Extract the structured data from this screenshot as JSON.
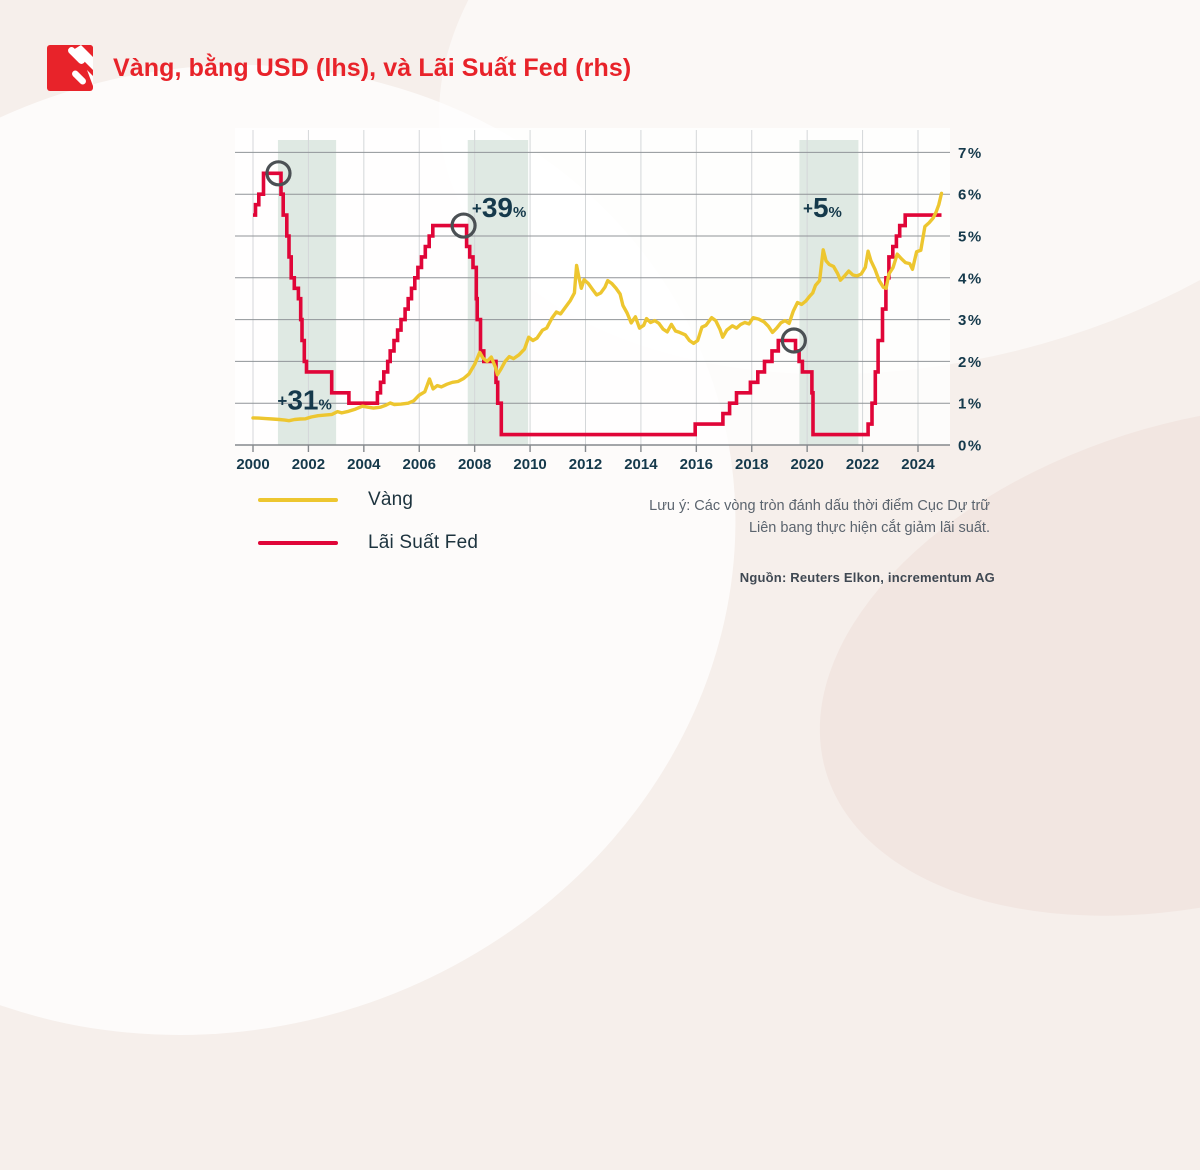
{
  "header": {
    "title": "Vàng, bằng USD (lhs), và Lãi Suất Fed (rhs)"
  },
  "colors": {
    "brand_red": "#e8232a",
    "gold_line": "#edc62f",
    "fed_line": "#e00538",
    "navy_text": "#15394b",
    "band": "#dfe9e3",
    "grid_h": "#909498",
    "grid_v": "#d4d7d9",
    "axis": "#85898d",
    "circle_marker": "#4b5054",
    "panel": "rgba(255,255,255,0.8)"
  },
  "chart_data": {
    "type": "line",
    "title": "Vàng, bằng USD (lhs), và Lãi Suất Fed (rhs)",
    "x_axis": {
      "ticks": [
        2000,
        2002,
        2004,
        2006,
        2008,
        2010,
        2012,
        2014,
        2016,
        2018,
        2020,
        2022,
        2024
      ],
      "range": [
        2000,
        2024.85
      ]
    },
    "right_axis": {
      "labels": [
        "7%",
        "6%",
        "5%",
        "4%",
        "3%",
        "2%",
        "1%",
        "0%"
      ],
      "range": [
        0,
        7
      ],
      "unit": "%"
    },
    "layout": {
      "grid": true,
      "legend_position": "bottom-left",
      "left_axis_unlabeled": true,
      "gold_usd_per_percent": 440
    },
    "shaded_bands": [
      {
        "from": 2000.9,
        "to": 2003.0
      },
      {
        "from": 2007.75,
        "to": 2009.93
      },
      {
        "from": 2019.72,
        "to": 2021.85
      }
    ],
    "cut_markers": [
      {
        "year": 2000.92,
        "pct": 6.5
      },
      {
        "year": 2007.6,
        "pct": 5.25
      },
      {
        "year": 2019.52,
        "pct": 2.5
      }
    ],
    "annotations": [
      {
        "plus": "+",
        "value": "31",
        "unit": "%",
        "year": 2000.88,
        "pct": 0.85
      },
      {
        "plus": "+",
        "value": "39",
        "unit": "%",
        "year": 2007.9,
        "pct": 5.45
      },
      {
        "plus": "+",
        "value": "5",
        "unit": "%",
        "year": 2019.85,
        "pct": 5.45
      }
    ],
    "series": [
      {
        "name": "Vàng",
        "unit": "USD",
        "style": "line",
        "points": [
          [
            2000.0,
            285
          ],
          [
            2000.2,
            283
          ],
          [
            2000.45,
            278
          ],
          [
            2000.7,
            274
          ],
          [
            2000.95,
            268
          ],
          [
            2001.15,
            262
          ],
          [
            2001.3,
            256
          ],
          [
            2001.5,
            268
          ],
          [
            2001.7,
            274
          ],
          [
            2001.9,
            276
          ],
          [
            2002.1,
            295
          ],
          [
            2002.35,
            308
          ],
          [
            2002.6,
            315
          ],
          [
            2002.85,
            322
          ],
          [
            2003.05,
            352
          ],
          [
            2003.2,
            338
          ],
          [
            2003.45,
            355
          ],
          [
            2003.7,
            378
          ],
          [
            2003.95,
            408
          ],
          [
            2004.15,
            398
          ],
          [
            2004.35,
            388
          ],
          [
            2004.6,
            398
          ],
          [
            2004.8,
            420
          ],
          [
            2004.95,
            442
          ],
          [
            2005.1,
            426
          ],
          [
            2005.35,
            430
          ],
          [
            2005.6,
            440
          ],
          [
            2005.8,
            465
          ],
          [
            2006.0,
            525
          ],
          [
            2006.2,
            560
          ],
          [
            2006.37,
            695
          ],
          [
            2006.5,
            590
          ],
          [
            2006.65,
            625
          ],
          [
            2006.8,
            612
          ],
          [
            2007.0,
            640
          ],
          [
            2007.2,
            660
          ],
          [
            2007.4,
            668
          ],
          [
            2007.6,
            700
          ],
          [
            2007.8,
            750
          ],
          [
            2008.0,
            850
          ],
          [
            2008.18,
            975
          ],
          [
            2008.3,
            915
          ],
          [
            2008.45,
            880
          ],
          [
            2008.6,
            925
          ],
          [
            2008.75,
            820
          ],
          [
            2008.82,
            740
          ],
          [
            2008.95,
            800
          ],
          [
            2009.1,
            880
          ],
          [
            2009.25,
            930
          ],
          [
            2009.4,
            910
          ],
          [
            2009.6,
            950
          ],
          [
            2009.8,
            1010
          ],
          [
            2009.95,
            1135
          ],
          [
            2010.1,
            1100
          ],
          [
            2010.25,
            1125
          ],
          [
            2010.45,
            1210
          ],
          [
            2010.6,
            1230
          ],
          [
            2010.8,
            1340
          ],
          [
            2010.95,
            1400
          ],
          [
            2011.1,
            1380
          ],
          [
            2011.25,
            1440
          ],
          [
            2011.45,
            1520
          ],
          [
            2011.6,
            1600
          ],
          [
            2011.68,
            1890
          ],
          [
            2011.75,
            1780
          ],
          [
            2011.85,
            1650
          ],
          [
            2011.95,
            1740
          ],
          [
            2012.1,
            1700
          ],
          [
            2012.25,
            1640
          ],
          [
            2012.4,
            1580
          ],
          [
            2012.55,
            1600
          ],
          [
            2012.7,
            1660
          ],
          [
            2012.8,
            1730
          ],
          [
            2012.95,
            1700
          ],
          [
            2013.1,
            1650
          ],
          [
            2013.25,
            1590
          ],
          [
            2013.35,
            1470
          ],
          [
            2013.5,
            1390
          ],
          [
            2013.65,
            1285
          ],
          [
            2013.8,
            1350
          ],
          [
            2013.95,
            1230
          ],
          [
            2014.1,
            1260
          ],
          [
            2014.2,
            1330
          ],
          [
            2014.35,
            1290
          ],
          [
            2014.5,
            1310
          ],
          [
            2014.65,
            1280
          ],
          [
            2014.8,
            1220
          ],
          [
            2014.95,
            1190
          ],
          [
            2015.1,
            1270
          ],
          [
            2015.25,
            1200
          ],
          [
            2015.4,
            1185
          ],
          [
            2015.6,
            1160
          ],
          [
            2015.75,
            1100
          ],
          [
            2015.9,
            1070
          ],
          [
            2016.05,
            1100
          ],
          [
            2016.2,
            1240
          ],
          [
            2016.35,
            1260
          ],
          [
            2016.55,
            1340
          ],
          [
            2016.7,
            1310
          ],
          [
            2016.85,
            1220
          ],
          [
            2016.95,
            1135
          ],
          [
            2017.1,
            1210
          ],
          [
            2017.3,
            1255
          ],
          [
            2017.45,
            1230
          ],
          [
            2017.6,
            1270
          ],
          [
            2017.75,
            1290
          ],
          [
            2017.9,
            1275
          ],
          [
            2018.05,
            1340
          ],
          [
            2018.25,
            1325
          ],
          [
            2018.45,
            1295
          ],
          [
            2018.6,
            1250
          ],
          [
            2018.75,
            1185
          ],
          [
            2018.9,
            1230
          ],
          [
            2019.05,
            1285
          ],
          [
            2019.2,
            1310
          ],
          [
            2019.35,
            1280
          ],
          [
            2019.5,
            1410
          ],
          [
            2019.65,
            1500
          ],
          [
            2019.8,
            1480
          ],
          [
            2019.95,
            1515
          ],
          [
            2020.1,
            1570
          ],
          [
            2020.2,
            1600
          ],
          [
            2020.3,
            1680
          ],
          [
            2020.45,
            1730
          ],
          [
            2020.58,
            2055
          ],
          [
            2020.68,
            1940
          ],
          [
            2020.8,
            1900
          ],
          [
            2020.95,
            1880
          ],
          [
            2021.1,
            1805
          ],
          [
            2021.2,
            1735
          ],
          [
            2021.35,
            1780
          ],
          [
            2021.5,
            1830
          ],
          [
            2021.65,
            1790
          ],
          [
            2021.8,
            1780
          ],
          [
            2021.95,
            1800
          ],
          [
            2022.1,
            1870
          ],
          [
            2022.2,
            2040
          ],
          [
            2022.3,
            1940
          ],
          [
            2022.45,
            1850
          ],
          [
            2022.6,
            1730
          ],
          [
            2022.75,
            1660
          ],
          [
            2022.85,
            1650
          ],
          [
            2022.95,
            1800
          ],
          [
            2023.1,
            1870
          ],
          [
            2023.25,
            2010
          ],
          [
            2023.4,
            1960
          ],
          [
            2023.55,
            1920
          ],
          [
            2023.7,
            1910
          ],
          [
            2023.8,
            1850
          ],
          [
            2023.95,
            2035
          ],
          [
            2024.1,
            2050
          ],
          [
            2024.25,
            2300
          ],
          [
            2024.4,
            2340
          ],
          [
            2024.55,
            2390
          ],
          [
            2024.65,
            2450
          ],
          [
            2024.75,
            2530
          ],
          [
            2024.85,
            2650
          ]
        ]
      },
      {
        "name": "Lãi Suất Fed",
        "unit": "%",
        "style": "step",
        "points": [
          [
            2000.0,
            5.5
          ],
          [
            2000.09,
            5.75
          ],
          [
            2000.21,
            6.0
          ],
          [
            2000.38,
            6.5
          ],
          [
            2001.01,
            6.0
          ],
          [
            2001.09,
            5.5
          ],
          [
            2001.22,
            5.0
          ],
          [
            2001.3,
            4.5
          ],
          [
            2001.38,
            4.0
          ],
          [
            2001.49,
            3.75
          ],
          [
            2001.64,
            3.5
          ],
          [
            2001.72,
            3.0
          ],
          [
            2001.77,
            2.5
          ],
          [
            2001.85,
            2.0
          ],
          [
            2001.93,
            1.75
          ],
          [
            2002.84,
            1.25
          ],
          [
            2003.46,
            1.0
          ],
          [
            2004.49,
            1.25
          ],
          [
            2004.6,
            1.5
          ],
          [
            2004.72,
            1.75
          ],
          [
            2004.86,
            2.0
          ],
          [
            2004.95,
            2.25
          ],
          [
            2005.09,
            2.5
          ],
          [
            2005.22,
            2.75
          ],
          [
            2005.34,
            3.0
          ],
          [
            2005.49,
            3.25
          ],
          [
            2005.6,
            3.5
          ],
          [
            2005.72,
            3.75
          ],
          [
            2005.84,
            4.0
          ],
          [
            2005.95,
            4.25
          ],
          [
            2006.08,
            4.5
          ],
          [
            2006.22,
            4.75
          ],
          [
            2006.36,
            5.0
          ],
          [
            2006.49,
            5.25
          ],
          [
            2007.71,
            4.75
          ],
          [
            2007.82,
            4.5
          ],
          [
            2007.94,
            4.25
          ],
          [
            2008.06,
            3.5
          ],
          [
            2008.09,
            3.0
          ],
          [
            2008.21,
            2.25
          ],
          [
            2008.33,
            2.0
          ],
          [
            2008.77,
            1.5
          ],
          [
            2008.83,
            1.0
          ],
          [
            2008.96,
            0.25
          ],
          [
            2015.96,
            0.5
          ],
          [
            2016.96,
            0.75
          ],
          [
            2017.2,
            1.0
          ],
          [
            2017.45,
            1.25
          ],
          [
            2017.95,
            1.5
          ],
          [
            2018.22,
            1.75
          ],
          [
            2018.46,
            2.0
          ],
          [
            2018.73,
            2.25
          ],
          [
            2018.96,
            2.5
          ],
          [
            2019.58,
            2.25
          ],
          [
            2019.71,
            2.0
          ],
          [
            2019.83,
            1.75
          ],
          [
            2020.17,
            1.25
          ],
          [
            2020.21,
            0.25
          ],
          [
            2022.2,
            0.5
          ],
          [
            2022.34,
            1.0
          ],
          [
            2022.46,
            1.75
          ],
          [
            2022.56,
            2.5
          ],
          [
            2022.72,
            3.25
          ],
          [
            2022.84,
            4.0
          ],
          [
            2022.95,
            4.5
          ],
          [
            2023.09,
            4.75
          ],
          [
            2023.22,
            5.0
          ],
          [
            2023.34,
            5.25
          ],
          [
            2023.54,
            5.5
          ],
          [
            2024.85,
            5.5
          ]
        ]
      }
    ]
  },
  "legend": {
    "items": [
      {
        "label": "Vàng",
        "color": "#edc62f"
      },
      {
        "label": "Lãi Suất Fed",
        "color": "#e00538"
      }
    ]
  },
  "note": {
    "text": "Lưu ý: Các vòng tròn đánh dấu thời điểm Cục Dự trữ Liên bang thực hiện cắt giảm lãi suất."
  },
  "source": {
    "text": "Nguồn: Reuters Elkon, incrementum AG"
  }
}
